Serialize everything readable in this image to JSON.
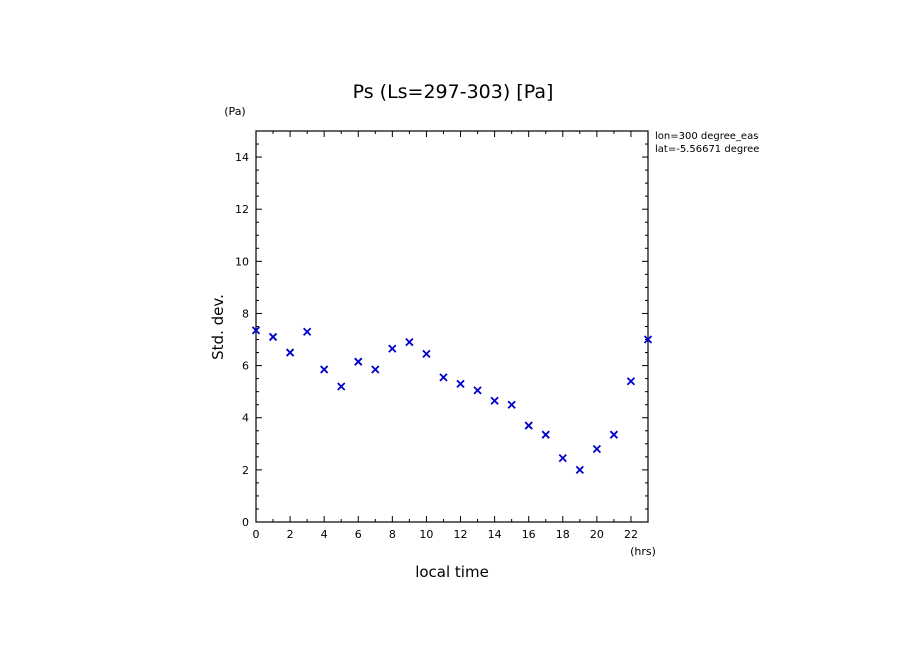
{
  "chart_data": {
    "type": "scatter",
    "title": "Ps (Ls=297-303) [Pa]",
    "xlabel": "local time",
    "ylabel": "Std. dev.",
    "x_unit": "(hrs)",
    "y_unit": "(Pa)",
    "xlim": [
      0,
      23
    ],
    "ylim": [
      0,
      15
    ],
    "x_ticks": [
      0,
      2,
      4,
      6,
      8,
      10,
      12,
      14,
      16,
      18,
      20,
      22
    ],
    "y_ticks": [
      0,
      2,
      4,
      6,
      8,
      10,
      12,
      14
    ],
    "annotations": [
      "lon=300 degree_eas",
      "lat=-5.56671 degree"
    ],
    "marker": "x",
    "color": "#0000cc",
    "x": [
      0,
      1,
      2,
      3,
      4,
      5,
      6,
      7,
      8,
      9,
      10,
      11,
      12,
      13,
      14,
      15,
      16,
      17,
      18,
      19,
      20,
      21,
      22,
      23
    ],
    "y": [
      7.35,
      7.1,
      6.5,
      7.3,
      5.85,
      5.2,
      6.15,
      5.85,
      6.65,
      6.9,
      6.45,
      5.55,
      5.3,
      5.05,
      4.65,
      4.5,
      3.7,
      3.35,
      2.45,
      2.0,
      2.8,
      3.35,
      5.4,
      7.0
    ]
  }
}
